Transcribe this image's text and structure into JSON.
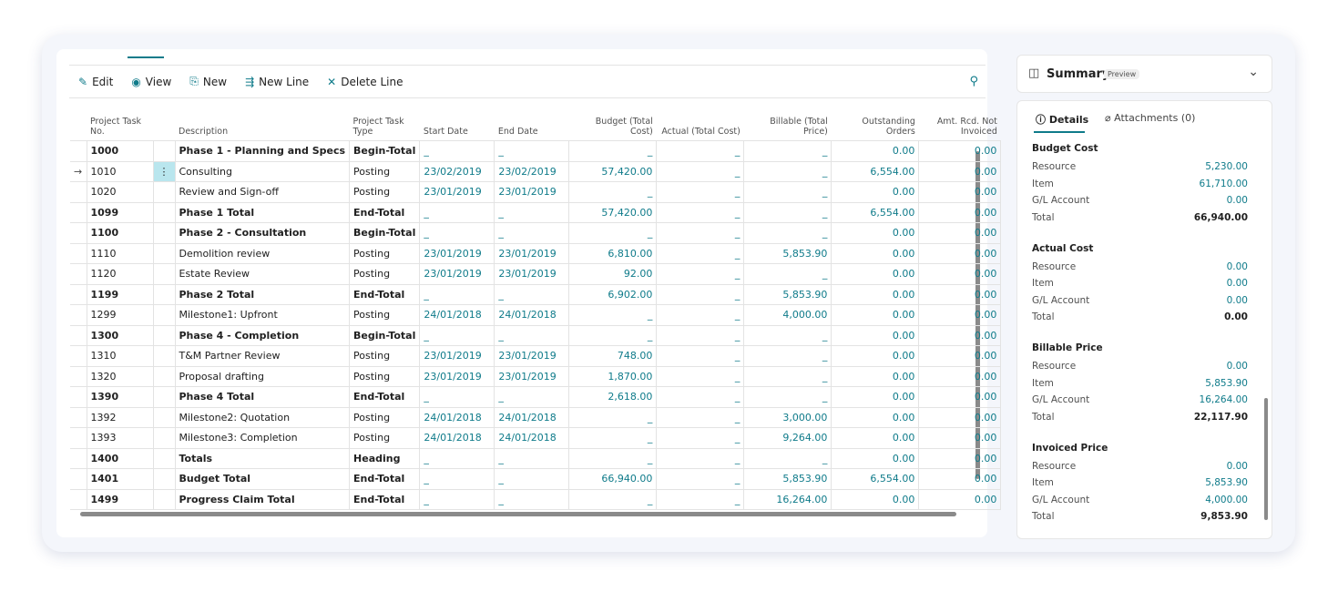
{
  "toolbar": {
    "actions": [
      "Edit",
      "View",
      "New",
      "New Line",
      "Delete Line"
    ]
  },
  "table": {
    "headers": [
      "Project Task No.",
      "Description",
      "Project Task Type",
      "Start Date",
      "End Date",
      "Budget (Total Cost)",
      "Actual (Total Cost)",
      "Billable (Total Price)",
      "Outstanding Orders",
      "Amt. Rcd. Not Invoiced"
    ],
    "rows": [
      [
        "1000",
        "Phase 1 - Planning and Specs",
        "Begin-Total",
        "_",
        "_",
        "_",
        "_",
        "_",
        "0.00",
        "0.00"
      ],
      [
        "1010",
        "Consulting",
        "Posting",
        "23/02/2019",
        "23/02/2019",
        "57,420.00",
        "_",
        "_",
        "6,554.00",
        "0.00"
      ],
      [
        "1020",
        "Review and Sign-off",
        "Posting",
        "23/01/2019",
        "23/01/2019",
        "_",
        "_",
        "_",
        "0.00",
        "0.00"
      ],
      [
        "1099",
        "Phase 1 Total",
        "End-Total",
        "_",
        "_",
        "57,420.00",
        "_",
        "_",
        "6,554.00",
        "0.00"
      ],
      [
        "1100",
        "Phase 2 - Consultation",
        "Begin-Total",
        "_",
        "_",
        "_",
        "_",
        "_",
        "0.00",
        "0.00"
      ],
      [
        "1110",
        "Demolition review",
        "Posting",
        "23/01/2019",
        "23/01/2019",
        "6,810.00",
        "_",
        "5,853.90",
        "0.00",
        "0.00"
      ],
      [
        "1120",
        "Estate Review",
        "Posting",
        "23/01/2019",
        "23/01/2019",
        "92.00",
        "_",
        "_",
        "0.00",
        "0.00"
      ],
      [
        "1199",
        "Phase 2 Total",
        "End-Total",
        "_",
        "_",
        "6,902.00",
        "_",
        "5,853.90",
        "0.00",
        "0.00"
      ],
      [
        "1299",
        "Milestone1: Upfront",
        "Posting",
        "24/01/2018",
        "24/01/2018",
        "_",
        "_",
        "4,000.00",
        "0.00",
        "0.00"
      ],
      [
        "1300",
        "Phase 4 - Completion",
        "Begin-Total",
        "_",
        "_",
        "_",
        "_",
        "_",
        "0.00",
        "0.00"
      ],
      [
        "1310",
        "T&M Partner Review",
        "Posting",
        "23/01/2019",
        "23/01/2019",
        "748.00",
        "_",
        "_",
        "0.00",
        "0.00"
      ],
      [
        "1320",
        "Proposal drafting",
        "Posting",
        "23/01/2019",
        "23/01/2019",
        "1,870.00",
        "_",
        "_",
        "0.00",
        "0.00"
      ],
      [
        "1390",
        "Phase 4 Total",
        "End-Total",
        "_",
        "_",
        "2,618.00",
        "_",
        "_",
        "0.00",
        "0.00"
      ],
      [
        "1392",
        "Milestone2: Quotation",
        "Posting",
        "24/01/2018",
        "24/01/2018",
        "_",
        "_",
        "3,000.00",
        "0.00",
        "0.00"
      ],
      [
        "1393",
        "Milestone3: Completion",
        "Posting",
        "24/01/2018",
        "24/01/2018",
        "_",
        "_",
        "9,264.00",
        "0.00",
        "0.00"
      ],
      [
        "1400",
        "Totals",
        "Heading",
        "_",
        "_",
        "_",
        "_",
        "_",
        "0.00",
        "0.00"
      ],
      [
        "1401",
        "Budget Total",
        "End-Total",
        "_",
        "_",
        "66,940.00",
        "_",
        "5,853.90",
        "6,554.00",
        "0.00"
      ],
      [
        "1499",
        "Progress Claim Total",
        "End-Total",
        "_",
        "_",
        "_",
        "_",
        "16,264.00",
        "0.00",
        "0.00"
      ]
    ]
  },
  "summary": {
    "title": "Summary",
    "badge": "Preview",
    "tabs": [
      "Details",
      "Attachments (0)"
    ],
    "sections": [
      {
        "title": "Budget Cost",
        "items": [
          [
            "Resource",
            "5,230.00"
          ],
          [
            "Item",
            "61,710.00"
          ],
          [
            "G/L Account",
            "0.00"
          ],
          [
            "Total",
            "66,940.00"
          ]
        ]
      },
      {
        "title": "Actual Cost",
        "items": [
          [
            "Resource",
            "0.00"
          ],
          [
            "Item",
            "0.00"
          ],
          [
            "G/L Account",
            "0.00"
          ],
          [
            "Total",
            "0.00"
          ]
        ]
      },
      {
        "title": "Billable Price",
        "items": [
          [
            "Resource",
            "0.00"
          ],
          [
            "Item",
            "5,853.90"
          ],
          [
            "G/L Account",
            "16,264.00"
          ],
          [
            "Total",
            "22,117.90"
          ]
        ]
      },
      {
        "title": "Invoiced Price",
        "items": [
          [
            "Resource",
            "0.00"
          ],
          [
            "Item",
            "5,853.90"
          ],
          [
            "G/L Account",
            "4,000.00"
          ],
          [
            "Total",
            "9,853.90"
          ]
        ]
      }
    ]
  }
}
